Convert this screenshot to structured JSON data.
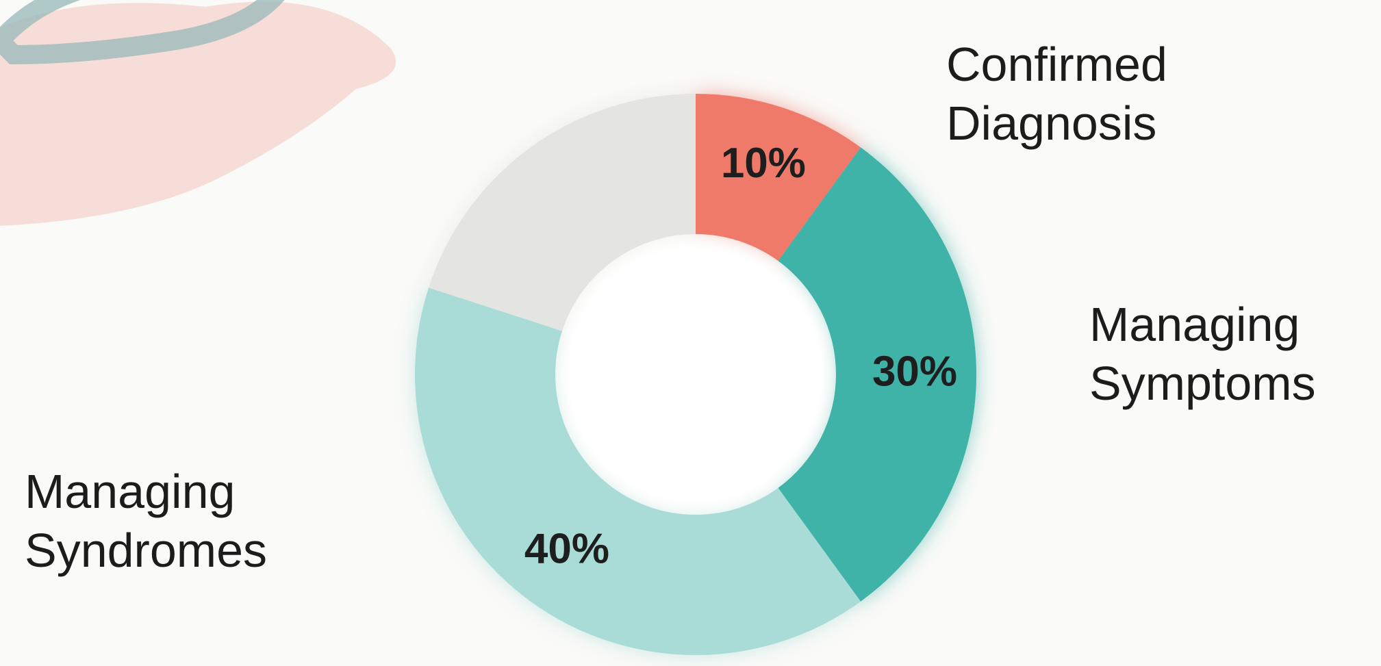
{
  "chart_data": {
    "type": "donut",
    "categories": [
      "Confirmed Diagnosis",
      "Managing Symptoms",
      "Managing Syndromes",
      null
    ],
    "values": [
      10,
      30,
      40,
      20
    ],
    "value_labels": [
      "10%",
      "30%",
      "40%",
      null
    ],
    "colors": [
      "#f07a6a",
      "#3fb3a8",
      "#a9dcd7",
      "#e4e4e2"
    ]
  }
}
